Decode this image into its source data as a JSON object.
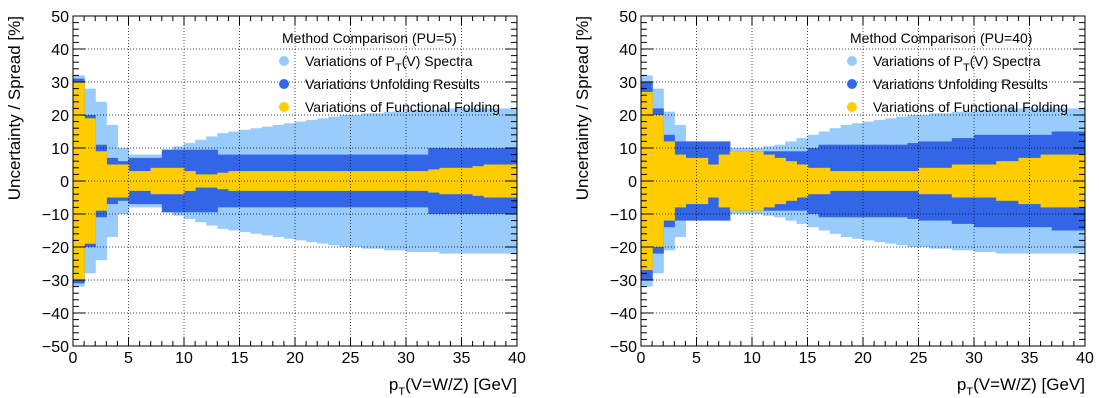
{
  "chart_data": [
    {
      "type": "area",
      "legend_title": "Method Comparison (PU=5)",
      "xlabel": "p_T(V=W/Z) [GeV]",
      "ylabel": "Uncertainty / Spread [%]",
      "xlim": [
        0,
        40
      ],
      "ylim": [
        -50,
        50
      ],
      "x_ticks": [
        "0",
        "5",
        "10",
        "15",
        "20",
        "25",
        "30",
        "35",
        "40"
      ],
      "y_ticks": [
        "−50",
        "−40",
        "−30",
        "−20",
        "−10",
        "0",
        "10",
        "20",
        "30",
        "40",
        "50"
      ],
      "grid": true,
      "legend_position": "top-right",
      "bin_edges": [
        0,
        1,
        2,
        3,
        4,
        5,
        6,
        7,
        8,
        9,
        10,
        11,
        12,
        13,
        14,
        15,
        16,
        17,
        18,
        19,
        20,
        21,
        22,
        23,
        24,
        25,
        26,
        27,
        28,
        29,
        30,
        31,
        32,
        33,
        34,
        35,
        36,
        37,
        38,
        39,
        40
      ],
      "series": [
        {
          "name": "Variations of P_T(V) Spectra",
          "color": "#99ccfa",
          "values": [
            32,
            28,
            24,
            17,
            10,
            8,
            8,
            8,
            9.5,
            10.5,
            11.5,
            12.5,
            13.5,
            14.5,
            15,
            15.5,
            16,
            16.5,
            17,
            17.5,
            18,
            18.5,
            19,
            19.5,
            20,
            20,
            20.5,
            20.5,
            21,
            21,
            21.5,
            21.5,
            21.5,
            22,
            22,
            22,
            22,
            22,
            22,
            22
          ]
        },
        {
          "name": "Variations Unfolding Results",
          "color": "#3366e6",
          "values": [
            31,
            20,
            11,
            7,
            6,
            7,
            7,
            7,
            9.5,
            9.5,
            9.5,
            9.5,
            9.5,
            8,
            8,
            8,
            8,
            8,
            8,
            8,
            8,
            8,
            8,
            8,
            8,
            8,
            8,
            8,
            8,
            8,
            8,
            8,
            10,
            10,
            10,
            10,
            10,
            10,
            10,
            10
          ]
        },
        {
          "name": "Variations of Functional Folding",
          "color": "#ffcc00",
          "values": [
            30,
            19,
            9,
            5,
            5,
            3,
            3,
            4,
            4,
            4,
            3,
            2,
            2,
            2.5,
            3,
            3,
            3,
            3,
            3,
            3,
            3,
            3,
            3,
            3,
            3,
            3,
            3,
            3,
            3,
            3,
            3,
            3,
            3.5,
            4,
            4,
            4,
            4.5,
            5,
            5,
            5
          ]
        }
      ]
    },
    {
      "type": "area",
      "legend_title": "Method Comparison (PU=40)",
      "xlabel": "p_T(V=W/Z) [GeV]",
      "ylabel": "Uncertainty / Spread [%]",
      "xlim": [
        0,
        40
      ],
      "ylim": [
        -50,
        50
      ],
      "x_ticks": [
        "0",
        "5",
        "10",
        "15",
        "20",
        "25",
        "30",
        "35",
        "40"
      ],
      "y_ticks": [
        "−50",
        "−40",
        "−30",
        "−20",
        "−10",
        "0",
        "10",
        "20",
        "30",
        "40",
        "50"
      ],
      "grid": true,
      "legend_position": "top-right",
      "bin_edges": [
        0,
        1,
        2,
        3,
        4,
        5,
        6,
        7,
        8,
        9,
        10,
        11,
        12,
        13,
        14,
        15,
        16,
        17,
        18,
        19,
        20,
        21,
        22,
        23,
        24,
        25,
        26,
        27,
        28,
        29,
        30,
        31,
        32,
        33,
        34,
        35,
        36,
        37,
        38,
        39,
        40
      ],
      "series": [
        {
          "name": "Variations of P_T(V) Spectra",
          "color": "#99ccfa",
          "values": [
            32,
            28,
            21,
            17,
            12,
            10,
            11,
            12,
            10,
            10,
            10,
            10.5,
            11,
            12,
            13,
            14,
            15,
            16,
            17,
            17.5,
            18,
            18.5,
            19,
            19.5,
            20,
            20,
            20.5,
            20.5,
            21,
            21,
            21.5,
            21.5,
            22,
            22,
            22,
            22,
            22,
            22,
            22,
            22
          ]
        },
        {
          "name": "Variations Unfolding Results",
          "color": "#3366e6",
          "values": [
            30,
            22,
            14,
            12,
            12,
            12,
            12,
            12,
            9,
            9,
            9,
            9,
            9,
            9,
            9,
            10,
            11,
            11,
            11,
            11,
            11,
            11,
            11,
            11,
            11.5,
            12,
            12,
            12,
            13,
            13,
            14,
            14,
            14,
            14,
            14,
            14,
            14,
            15,
            15,
            15
          ]
        },
        {
          "name": "Variations of Functional Folding",
          "color": "#ffcc00",
          "values": [
            27,
            20,
            12,
            8,
            7,
            7,
            5,
            8,
            9,
            9,
            9,
            8,
            7,
            6,
            5,
            4,
            4,
            3,
            3,
            3,
            3,
            3,
            3,
            3,
            3,
            4,
            4,
            4,
            5,
            5,
            5,
            5,
            6,
            6,
            7,
            7,
            8,
            8,
            8,
            8
          ]
        }
      ]
    }
  ]
}
